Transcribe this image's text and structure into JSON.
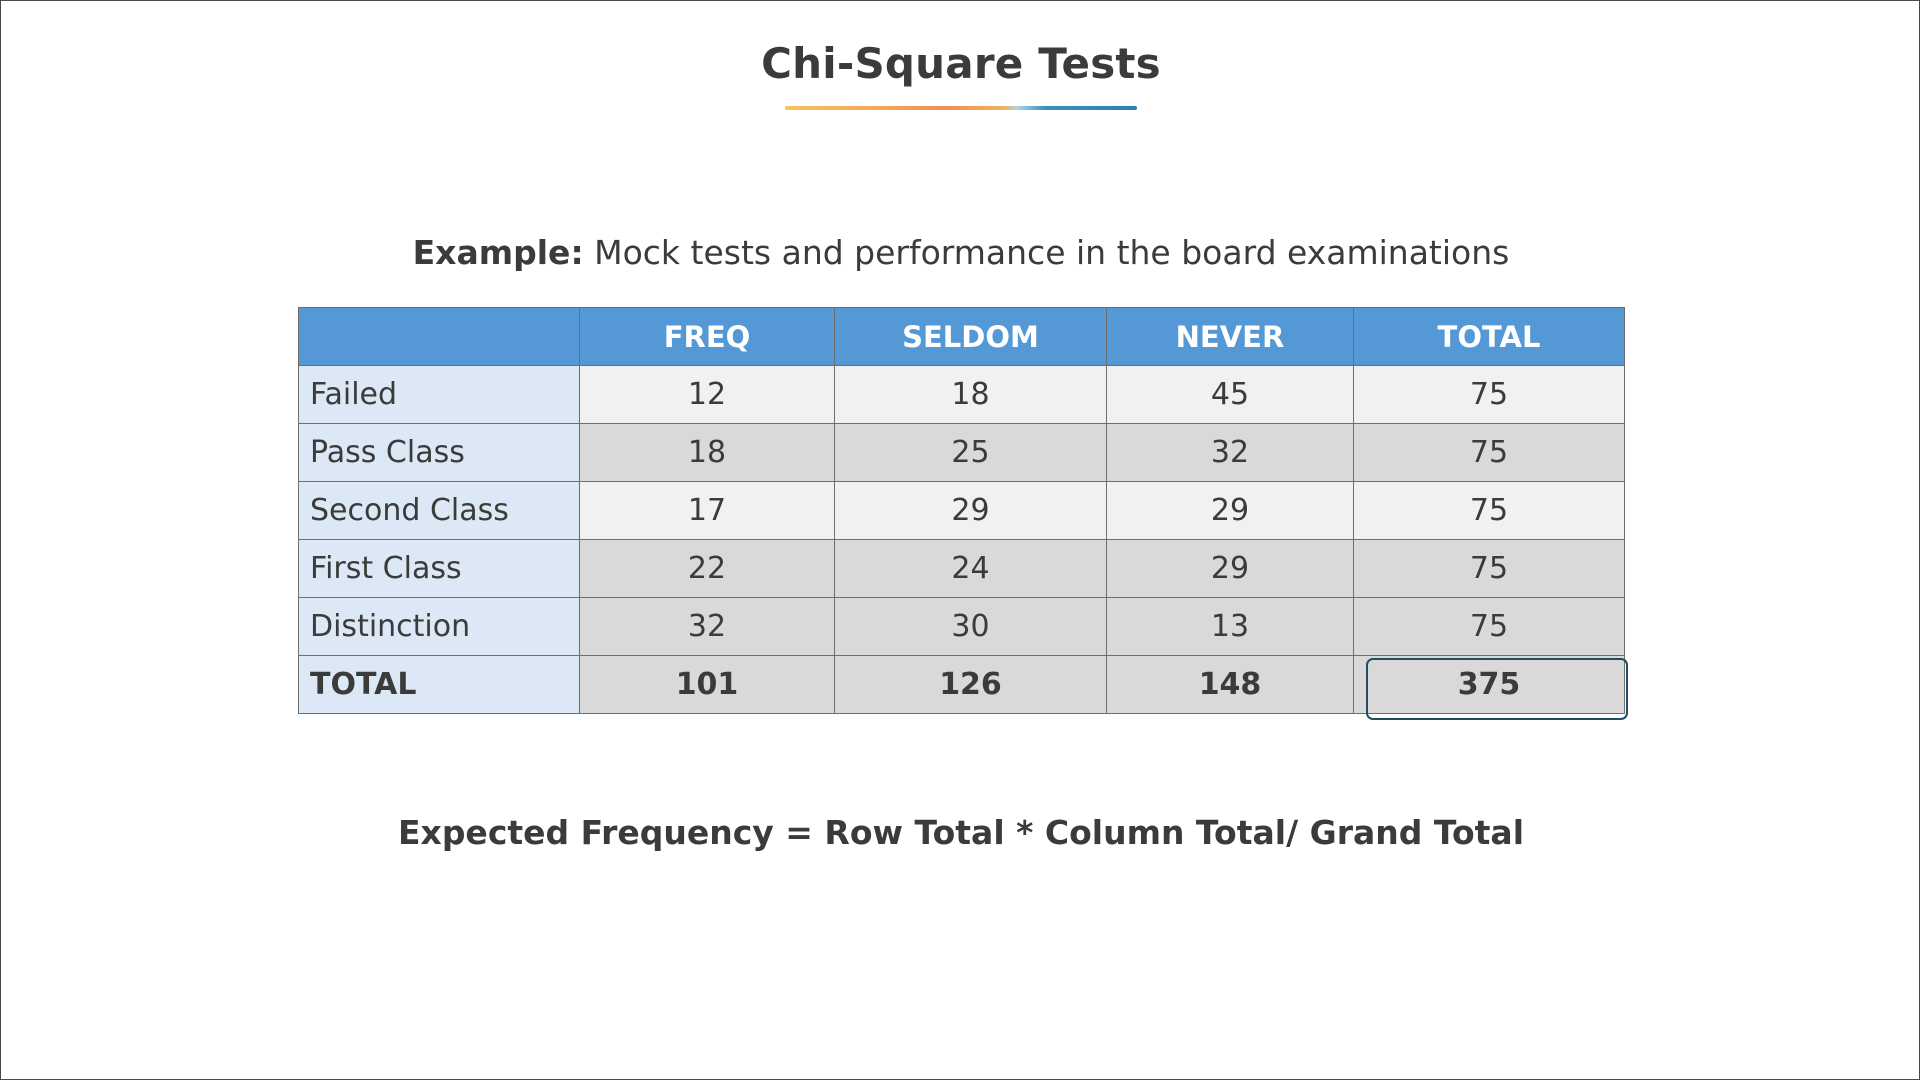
{
  "title": "Chi-Square Tests",
  "example": {
    "lead": "Example:",
    "text": " Mock tests and performance in the board examinations"
  },
  "table": {
    "headers": [
      "",
      "FREQ",
      "SELDOM",
      "NEVER",
      "TOTAL"
    ],
    "rows": [
      {
        "label": "Failed",
        "values": [
          "12",
          "18",
          "45",
          "75"
        ]
      },
      {
        "label": "Pass Class",
        "values": [
          "18",
          "25",
          "32",
          "75"
        ]
      },
      {
        "label": "Second Class",
        "values": [
          "17",
          "29",
          "29",
          "75"
        ]
      },
      {
        "label": "First Class",
        "values": [
          "22",
          "24",
          "29",
          "75"
        ]
      },
      {
        "label": "Distinction",
        "values": [
          "32",
          "30",
          "13",
          "75"
        ]
      },
      {
        "label": "TOTAL",
        "values": [
          "101",
          "126",
          "148",
          "375"
        ]
      }
    ]
  },
  "formula": "Expected Frequency = Row Total * Column Total/ Grand Total",
  "colors": {
    "header_bg": "#5598d6",
    "row_label_bg": "#dce8f5",
    "row_light_bg": "#f1f1f1",
    "row_dark_bg": "#d9d9d9",
    "highlight_border": "#1f4e63"
  }
}
